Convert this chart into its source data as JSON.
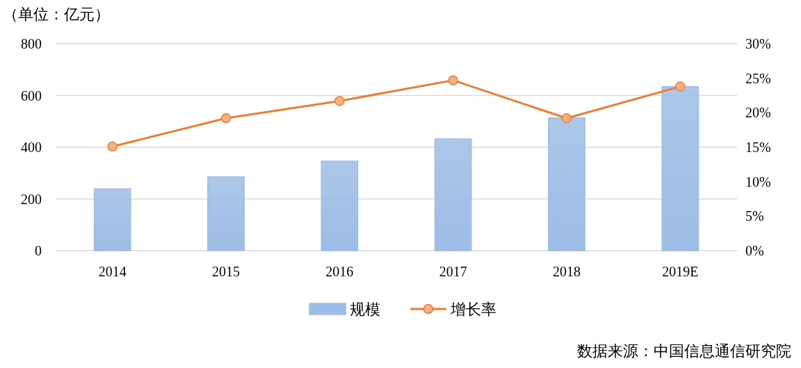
{
  "chart_data": {
    "type": "bar",
    "ylabel": "（单位：亿元）",
    "categories": [
      "2014",
      "2015",
      "2016",
      "2017",
      "2018",
      "2019E"
    ],
    "series": [
      {
        "name": "规模",
        "color": "#9dbde6",
        "values": [
          239,
          285,
          346,
          432,
          513,
          634
        ]
      },
      {
        "name": "增长率",
        "type": "line",
        "axis": "y2",
        "color": "#ed7d31",
        "marker": "circle",
        "values": [
          15.1,
          19.2,
          21.7,
          24.7,
          19.2,
          23.8
        ]
      }
    ],
    "ylim": [
      0,
      800
    ],
    "yticks": [
      0,
      200,
      400,
      600,
      800
    ],
    "y2lim": [
      0,
      30
    ],
    "y2ticks": [
      {
        "value": 0,
        "label": "0%"
      },
      {
        "value": 5,
        "label": "5%"
      },
      {
        "value": 10,
        "label": "10%"
      },
      {
        "value": 15,
        "label": "15%"
      },
      {
        "value": 20,
        "label": "20%"
      },
      {
        "value": 25,
        "label": "25%"
      },
      {
        "value": 30,
        "label": "30%"
      }
    ],
    "grid": "y",
    "legend": "bottom",
    "annotations": [
      "数据来源：中国信息通信研究院"
    ]
  }
}
